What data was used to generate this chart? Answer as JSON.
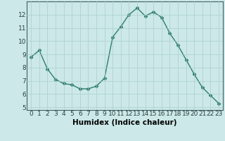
{
  "x": [
    0,
    1,
    2,
    3,
    4,
    5,
    6,
    7,
    8,
    9,
    10,
    11,
    12,
    13,
    14,
    15,
    16,
    17,
    18,
    19,
    20,
    21,
    22,
    23
  ],
  "y": [
    8.8,
    9.3,
    7.9,
    7.1,
    6.8,
    6.7,
    6.4,
    6.4,
    6.6,
    7.2,
    10.3,
    11.1,
    12.0,
    12.5,
    11.9,
    12.2,
    11.8,
    10.6,
    9.7,
    8.6,
    7.5,
    6.5,
    5.9,
    5.3
  ],
  "line_color": "#2e7d6e",
  "marker": "D",
  "marker_size": 2.5,
  "linewidth": 1.0,
  "xlabel": "Humidex (Indice chaleur)",
  "xlim": [
    -0.5,
    23.5
  ],
  "ylim": [
    4.8,
    13.0
  ],
  "yticks": [
    5,
    6,
    7,
    8,
    9,
    10,
    11,
    12
  ],
  "xticks": [
    0,
    1,
    2,
    3,
    4,
    5,
    6,
    7,
    8,
    9,
    10,
    11,
    12,
    13,
    14,
    15,
    16,
    17,
    18,
    19,
    20,
    21,
    22,
    23
  ],
  "bg_color": "#cce8e8",
  "grid_color": "#aacfcf",
  "tick_label_fontsize": 6.5,
  "xlabel_fontsize": 7.5,
  "spine_color": "#406060"
}
